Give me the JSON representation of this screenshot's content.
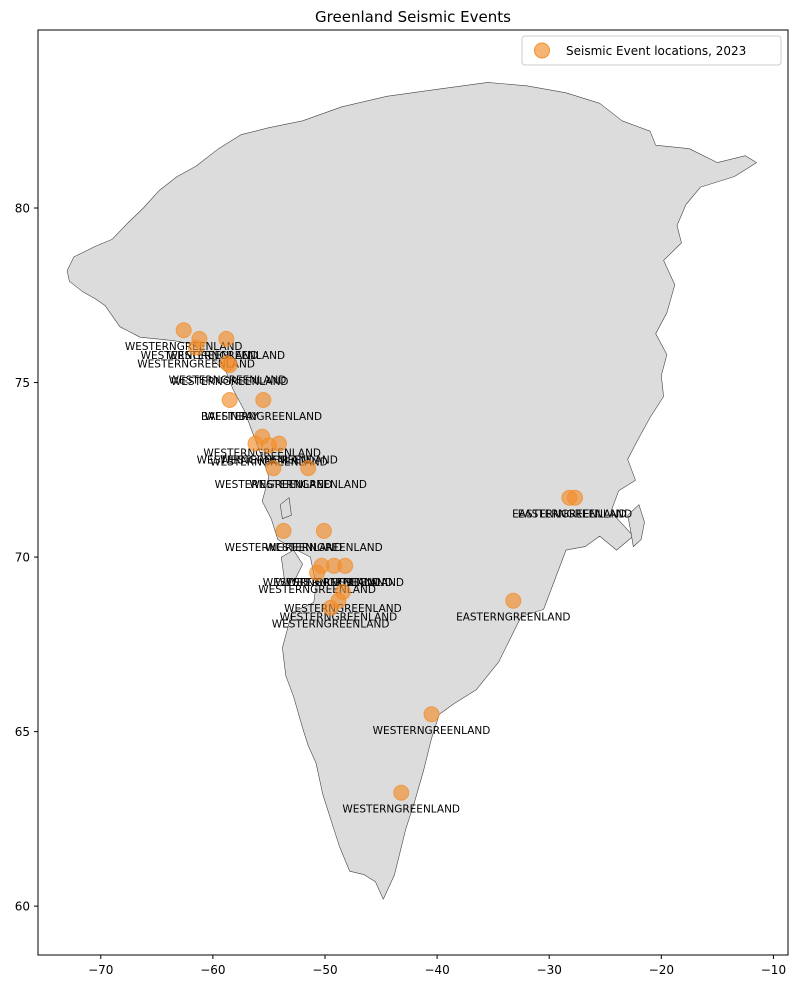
{
  "chart_data": {
    "type": "scatter",
    "title": "Greenland Seismic Events",
    "xlabel": "",
    "ylabel": "",
    "xlim": [
      -75.6,
      -8.7
    ],
    "ylim": [
      58.6,
      85.1
    ],
    "x_ticks": [
      -70,
      -60,
      -50,
      -40,
      -30,
      -20,
      -10
    ],
    "y_ticks": [
      60,
      65,
      70,
      75,
      80
    ],
    "x_tick_labels": [
      "−70",
      "−60",
      "−50",
      "−40",
      "−30",
      "−20",
      "−10"
    ],
    "y_tick_labels": [
      "60",
      "65",
      "70",
      "75",
      "80"
    ],
    "grid": false,
    "legend_position": "top-right",
    "colors": {
      "point": "#f28e2b",
      "land": "#dcdcdc",
      "coast": "#444444"
    },
    "series": [
      {
        "name": "Seismic Event locations, 2023",
        "points": [
          {
            "x": -62.6,
            "y": 76.5,
            "label": "WESTERNGREENLAND"
          },
          {
            "x": -61.2,
            "y": 76.25,
            "label": "WESTERNGREENLAND"
          },
          {
            "x": -58.8,
            "y": 76.25,
            "label": "WESTERNGREENLAND"
          },
          {
            "x": -61.5,
            "y": 76.0,
            "label": "WESTERNGREENLAND"
          },
          {
            "x": -58.7,
            "y": 75.55,
            "label": "WESTERNGREENLAND"
          },
          {
            "x": -58.5,
            "y": 75.5,
            "label": "WESTERNGREENLAND"
          },
          {
            "x": -58.5,
            "y": 74.5,
            "label": "BAFFINBAY"
          },
          {
            "x": -55.5,
            "y": 74.5,
            "label": "WESTERNGREENLAND"
          },
          {
            "x": -55.6,
            "y": 73.45,
            "label": "WESTERNGREENLAND"
          },
          {
            "x": -56.2,
            "y": 73.25,
            "label": "WESTERNGREENLAND"
          },
          {
            "x": -55.0,
            "y": 73.2,
            "label": "WESTERNGREENLAND"
          },
          {
            "x": -54.1,
            "y": 73.25,
            "label": "WESTERNGREENLAND"
          },
          {
            "x": -54.6,
            "y": 72.55,
            "label": "WESTERNGREENLAND"
          },
          {
            "x": -51.5,
            "y": 72.55,
            "label": "WESTERNGREENLAND"
          },
          {
            "x": -53.7,
            "y": 70.75,
            "label": "WESTERNGREENLAND"
          },
          {
            "x": -50.1,
            "y": 70.75,
            "label": "WESTERNGREENLAND"
          },
          {
            "x": -50.3,
            "y": 69.75,
            "label": "WESTERNGREENLAND"
          },
          {
            "x": -49.2,
            "y": 69.75,
            "label": "WESTERNGREENLAND"
          },
          {
            "x": -48.2,
            "y": 69.75,
            "label": "WESTERNGREENLAND"
          },
          {
            "x": -50.7,
            "y": 69.55,
            "label": "WESTERNGREENLAND"
          },
          {
            "x": -48.4,
            "y": 69.0,
            "label": "WESTERNGREENLAND"
          },
          {
            "x": -48.8,
            "y": 68.75,
            "label": "WESTERNGREENLAND"
          },
          {
            "x": -49.5,
            "y": 68.55,
            "label": "WESTERNGREENLAND"
          },
          {
            "x": -33.2,
            "y": 68.75,
            "label": "EASTERNGREENLAND"
          },
          {
            "x": -28.2,
            "y": 71.7,
            "label": "EASTERNGREENLAND"
          },
          {
            "x": -27.7,
            "y": 71.7,
            "label": "EASTERNGREENLAND"
          },
          {
            "x": -40.5,
            "y": 65.5,
            "label": "WESTERNGREENLAND"
          },
          {
            "x": -43.2,
            "y": 63.25,
            "label": "WESTERNGREENLAND"
          }
        ]
      }
    ]
  }
}
